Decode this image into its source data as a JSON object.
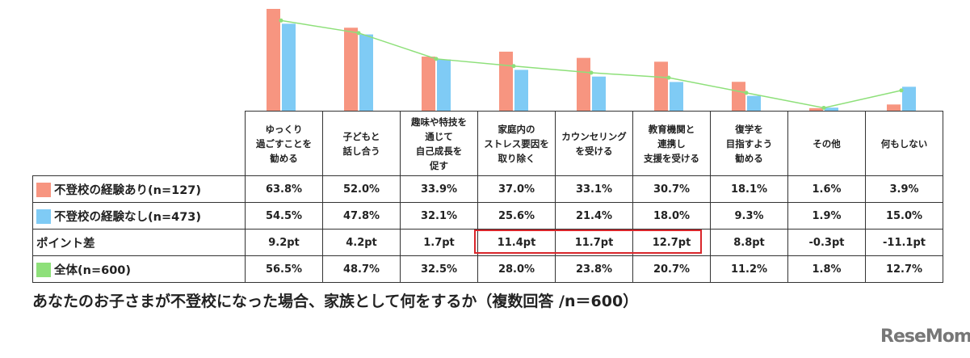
{
  "chart_data": {
    "type": "bar",
    "categories": [
      "ゆっくり\n過ごすことを\n勧める",
      "子どもと\n話し合う",
      "趣味や特技を\n通じて\n自己成長を\n促す",
      "家庭内の\nストレス要因を\n取り除く",
      "カウンセリング\nを受ける",
      "教育機関と\n連携し\n支援を受ける",
      "復学を\n目指すよう\n勧める",
      "その他",
      "何もしない"
    ],
    "series": [
      {
        "name": "不登校の経験あり(n=127)",
        "type": "bar",
        "color": "#f79580",
        "values": [
          63.8,
          52.0,
          33.9,
          37.0,
          33.1,
          30.7,
          18.1,
          1.6,
          3.9
        ],
        "labels": [
          "63.8%",
          "52.0%",
          "33.9%",
          "37.0%",
          "33.1%",
          "30.7%",
          "18.1%",
          "1.6%",
          "3.9%"
        ]
      },
      {
        "name": "不登校の経験なし(n=473)",
        "type": "bar",
        "color": "#7fcbf5",
        "values": [
          54.5,
          47.8,
          32.1,
          25.6,
          21.4,
          18.0,
          9.3,
          1.9,
          15.0
        ],
        "labels": [
          "54.5%",
          "47.8%",
          "32.1%",
          "25.6%",
          "21.4%",
          "18.0%",
          "9.3%",
          "1.9%",
          "15.0%"
        ]
      },
      {
        "name": "全体(n=600)",
        "type": "line",
        "color": "#8ee07a",
        "values": [
          56.5,
          48.7,
          32.5,
          28.0,
          23.8,
          20.7,
          11.2,
          1.8,
          12.7
        ],
        "labels": [
          "56.5%",
          "48.7%",
          "32.5%",
          "28.0%",
          "23.8%",
          "20.7%",
          "11.2%",
          "1.8%",
          "12.7%"
        ]
      }
    ],
    "point_diff": {
      "name": "ポイント差",
      "values": [
        9.2,
        4.2,
        1.7,
        11.4,
        11.7,
        12.7,
        8.8,
        -0.3,
        -11.1
      ],
      "labels": [
        "9.2pt",
        "4.2pt",
        "1.7pt",
        "11.4pt",
        "11.7pt",
        "12.7pt",
        "8.8pt",
        "-0.3pt",
        "-11.1pt"
      ],
      "highlighted": [
        "家庭内の\nストレス要因を\n取り除く",
        "カウンセリング\nを受ける",
        "教育機関と\n連携し\n支援を受ける"
      ],
      "highlight_color": "#d9262b"
    },
    "title": "あなたのお子さまが不登校になった場合、家族として何をするか（複数回答 /n＝600）",
    "ylim": [
      0,
      65
    ],
    "grid": false
  },
  "logo": "ReseMom"
}
